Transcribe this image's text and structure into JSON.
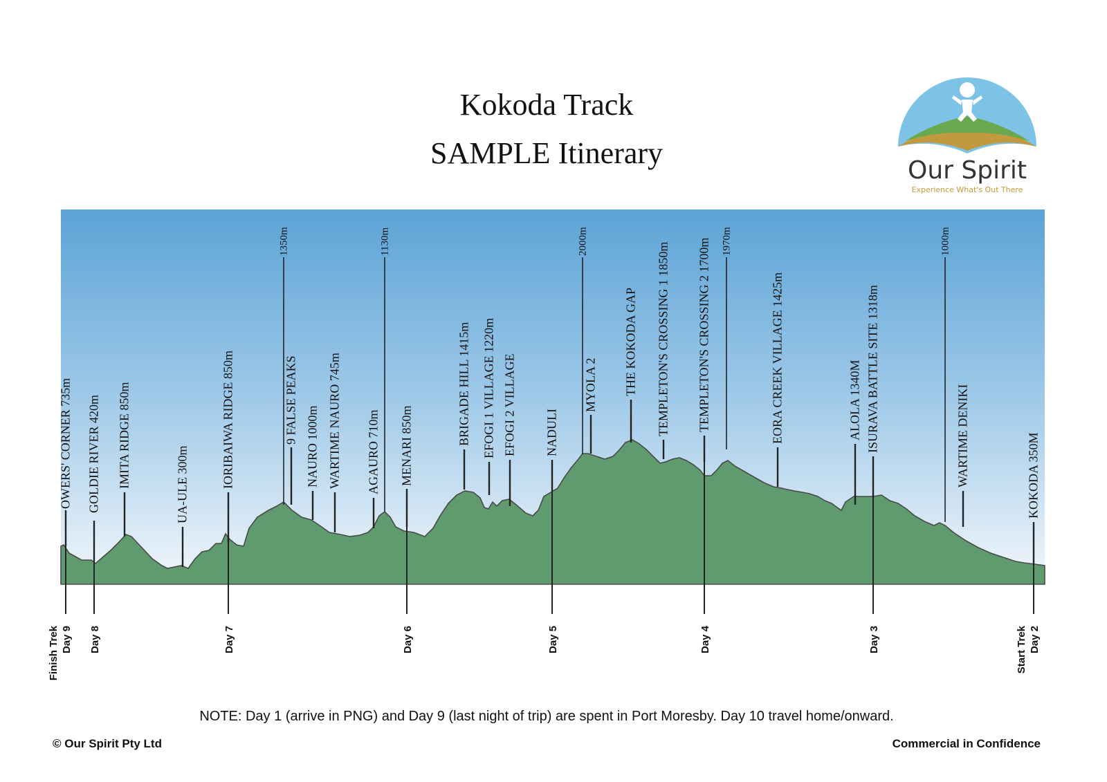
{
  "title": "Kokoda Track",
  "subtitle": "SAMPLE Itinerary",
  "logo": {
    "name": "Our Spirit",
    "tagline": "Experience What's Out There",
    "colors": {
      "sky": "#7cc3e6",
      "hill": "#6aa84f",
      "earth": "#c19a3f"
    }
  },
  "colors": {
    "sky_top": "#5ca3d6",
    "sky_bottom": "#f2f7fb",
    "terrain_top": "#d9ecd9",
    "terrain_bottom": "#5f9b6e"
  },
  "locations": [
    {
      "label": "OWERS' CORNER 735m"
    },
    {
      "label": "GOLDIE RIVER 420m"
    },
    {
      "label": "IMITA RIDGE 850m"
    },
    {
      "label": "UA-ULE 300m"
    },
    {
      "label": "IORIBAIWA RIDGE 850m"
    },
    {
      "label": "1350m"
    },
    {
      "label": "9 FALSE PEAKS"
    },
    {
      "label": "NAURO 1000m"
    },
    {
      "label": "WARTIME NAURO 745m"
    },
    {
      "label": "AGAURO 710m"
    },
    {
      "label": "1130m"
    },
    {
      "label": "MENARI 850m"
    },
    {
      "label": "BRIGADE HILL 1415m"
    },
    {
      "label": "EFOGI 1 VILLAGE 1220m"
    },
    {
      "label": "EFOGI 2 VILLAGE"
    },
    {
      "label": "NADULI"
    },
    {
      "label": "2000m"
    },
    {
      "label": "MYOLA 2"
    },
    {
      "label": "THE KOKODA GAP"
    },
    {
      "label": "TEMPLETON'S CROSSING 1 1850m"
    },
    {
      "label": "TEMPLETON'S CROSSING 2 1700m"
    },
    {
      "label": "1970m"
    },
    {
      "label": "EORA CREEK VILLAGE 1425m"
    },
    {
      "label": "ALOLA 1340M"
    },
    {
      "label": "ISURAVA BATTLE SITE 1318m"
    },
    {
      "label": "1000m"
    },
    {
      "label": "WARTIME DENIKI"
    },
    {
      "label": "KOKODA 350M"
    }
  ],
  "days": [
    {
      "lines": [
        "Finish Trek",
        "Day 9"
      ]
    },
    {
      "lines": [
        "Day 8"
      ]
    },
    {
      "lines": [
        "Day 7"
      ]
    },
    {
      "lines": [
        "Day 6"
      ]
    },
    {
      "lines": [
        "Day 5"
      ]
    },
    {
      "lines": [
        "Day 4"
      ]
    },
    {
      "lines": [
        "Day 3"
      ]
    },
    {
      "lines": [
        "Start Trek",
        "Day 2"
      ]
    }
  ],
  "note": "NOTE:  Day 1 (arrive in PNG) and Day 9 (last night of trip) are spent in Port Moresby. Day 10 travel home/onward.",
  "footer": {
    "left": "© Our Spirit Pty Ltd",
    "right": "Commercial in Confidence"
  }
}
